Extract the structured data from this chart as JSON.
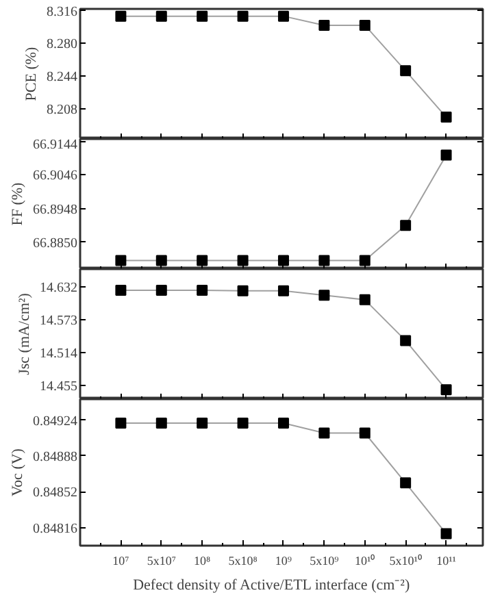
{
  "chart_data": [
    {
      "type": "line",
      "ylabel": "PCE (%)",
      "categories": [
        null,
        null,
        null,
        null,
        null,
        null,
        null,
        null,
        null
      ],
      "marker": "square",
      "line_style": "solid",
      "grid": false,
      "tick_labels": "y",
      "series": [
        {
          "color": "#a0a0a0",
          "values": [
            8.31,
            8.31,
            8.31,
            8.31,
            8.31,
            8.3,
            8.3,
            8.25,
            8.199
          ]
        }
      ],
      "ylim": [
        8.175,
        8.318
      ],
      "yticks": [
        8.208,
        8.244,
        {
          "value": 8.28,
          "label": "8.280"
        },
        8.316
      ]
    },
    {
      "type": "line",
      "ylabel": "FF (%)",
      "categories": [
        null,
        null,
        null,
        null,
        null,
        null,
        null,
        null,
        null
      ],
      "marker": "square",
      "line_style": "solid",
      "grid": false,
      "tick_labels": "y",
      "series": [
        {
          "color": "#a0a0a0",
          "values": [
            66.8797,
            66.8797,
            66.8797,
            66.8797,
            66.8797,
            66.8797,
            66.8797,
            66.8899,
            66.9103
          ]
        }
      ],
      "ylim": [
        66.8772,
        66.915
      ],
      "yticks": [
        {
          "value": 66.885,
          "label": "66.8850"
        },
        66.8948,
        66.9046,
        66.9144
      ]
    },
    {
      "type": "line",
      "ylabel": "Jsc (mA/cm²)",
      "categories": [
        null,
        null,
        null,
        null,
        null,
        null,
        null,
        null,
        null
      ],
      "marker": "square",
      "line_style": "solid",
      "grid": false,
      "tick_labels": "y",
      "series": [
        {
          "color": "#a0a0a0",
          "values": [
            14.626,
            14.626,
            14.626,
            14.625,
            14.625,
            14.617,
            14.609,
            14.536,
            14.448
          ]
        }
      ],
      "ylim": [
        14.431,
        14.664
      ],
      "yticks": [
        14.455,
        14.514,
        14.573,
        14.632
      ]
    },
    {
      "type": "line",
      "ylabel": "Voc (V)",
      "xlabel": "Defect density  of   Active/ETL   interface (cm⁻²)",
      "categories": [
        "10⁷",
        "5x10⁷",
        "10⁸",
        "5x10⁸",
        "10⁹",
        "5x10⁹",
        "10¹⁰",
        "5x10¹⁰",
        "10¹¹"
      ],
      "marker": "square",
      "line_style": "solid",
      "grid": false,
      "series": [
        {
          "color": "#a0a0a0",
          "values": [
            0.84921,
            0.84921,
            0.84921,
            0.84921,
            0.84921,
            0.84911,
            0.84911,
            0.84861,
            0.8481
          ]
        }
      ],
      "ylim": [
        0.84798,
        0.84945
      ],
      "yticks": [
        0.84816,
        0.84852,
        0.84888,
        0.84924
      ]
    }
  ]
}
